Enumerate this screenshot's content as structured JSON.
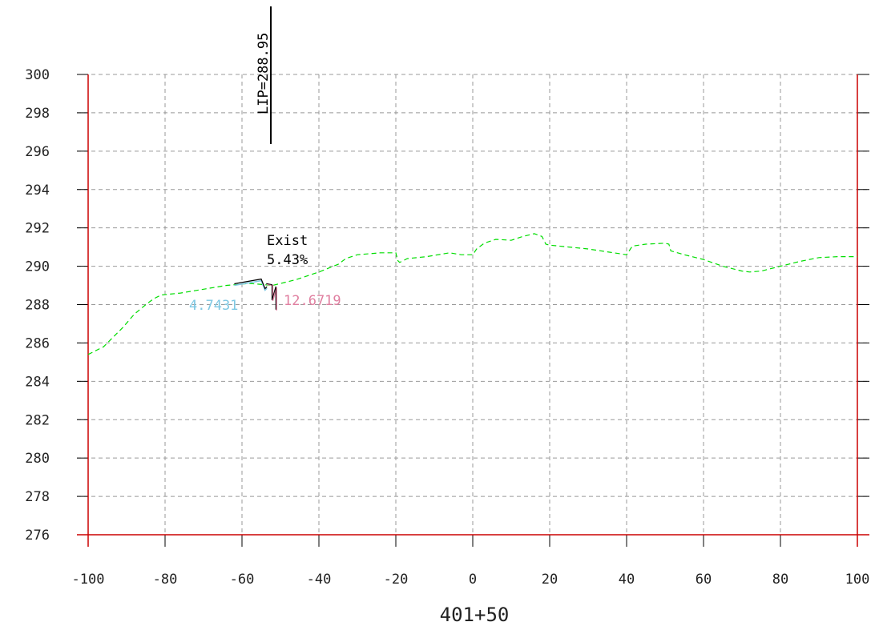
{
  "chart_data": {
    "type": "line",
    "station_label": "401+50",
    "xlabel": "",
    "ylabel": "",
    "xlim": [
      -100,
      100
    ],
    "ylim": [
      276,
      300
    ],
    "x_ticks": [
      -100,
      -80,
      -60,
      -40,
      -20,
      0,
      20,
      40,
      60,
      80,
      100
    ],
    "y_ticks": [
      300,
      298,
      296,
      294,
      292,
      290,
      288,
      286,
      284,
      282,
      280,
      278,
      276
    ],
    "x_tick_labels": [
      "-100",
      "-80",
      "-60",
      "-40",
      "-20",
      "0",
      "20",
      "40",
      "60",
      "80",
      "100"
    ],
    "y_tick_labels": [
      "300",
      "298",
      "296",
      "294",
      "292",
      "290",
      "288",
      "286",
      "284",
      "282",
      "280",
      "278",
      "276"
    ],
    "grid": true,
    "colors": {
      "axis": "#cc0000",
      "grid": "#999999",
      "ground": "#00dd00",
      "left_slope": "#7ec8e3",
      "right_slope": "#e07fa0",
      "lip": "#000000"
    },
    "series": [
      {
        "role": "existing-ground",
        "style": "dashed",
        "x": [
          -100,
          -96,
          -94,
          -91,
          -88,
          -85,
          -83,
          -81,
          -76,
          -70,
          -64,
          -58,
          -52,
          -46,
          -40,
          -35,
          -33,
          -30,
          -24,
          -20,
          -19.5,
          -19,
          -17,
          -12,
          -6,
          -3,
          0,
          1,
          3,
          6,
          10,
          13,
          16,
          18,
          19,
          20,
          25,
          30,
          35,
          40,
          41,
          41.5,
          45,
          50,
          51,
          51.5,
          55,
          60,
          65,
          70,
          72,
          75,
          80,
          85,
          90,
          95,
          100
        ],
        "y": [
          285.4,
          285.8,
          286.2,
          286.8,
          287.5,
          288.0,
          288.3,
          288.5,
          288.6,
          288.8,
          289.0,
          289.1,
          289.0,
          289.3,
          289.7,
          290.1,
          290.4,
          290.6,
          290.7,
          290.7,
          290.3,
          290.2,
          290.4,
          290.5,
          290.7,
          290.6,
          290.6,
          290.9,
          291.2,
          291.4,
          291.35,
          291.55,
          291.7,
          291.55,
          291.15,
          291.1,
          291.0,
          290.9,
          290.75,
          290.6,
          290.9,
          291.05,
          291.15,
          291.2,
          291.15,
          290.8,
          290.6,
          290.35,
          290.0,
          289.75,
          289.7,
          289.75,
          290.0,
          290.25,
          290.45,
          290.5,
          290.5
        ]
      },
      {
        "role": "left-slope",
        "x": [
          -62,
          -55,
          -54,
          -53.5
        ],
        "y": [
          289.0,
          289.25,
          288.75,
          288.85
        ]
      },
      {
        "role": "right-slope",
        "x": [
          -53.5,
          -52,
          -52,
          -51,
          -51
        ],
        "y": [
          289.05,
          289.0,
          288.2,
          288.9,
          287.7
        ]
      }
    ],
    "annotations": {
      "exist_label": "Exist",
      "exist_grade": "5.43%",
      "left_slope_label": "4.7431",
      "right_slope_label": "12.6719",
      "lip_label": "LIP=288.95"
    }
  }
}
